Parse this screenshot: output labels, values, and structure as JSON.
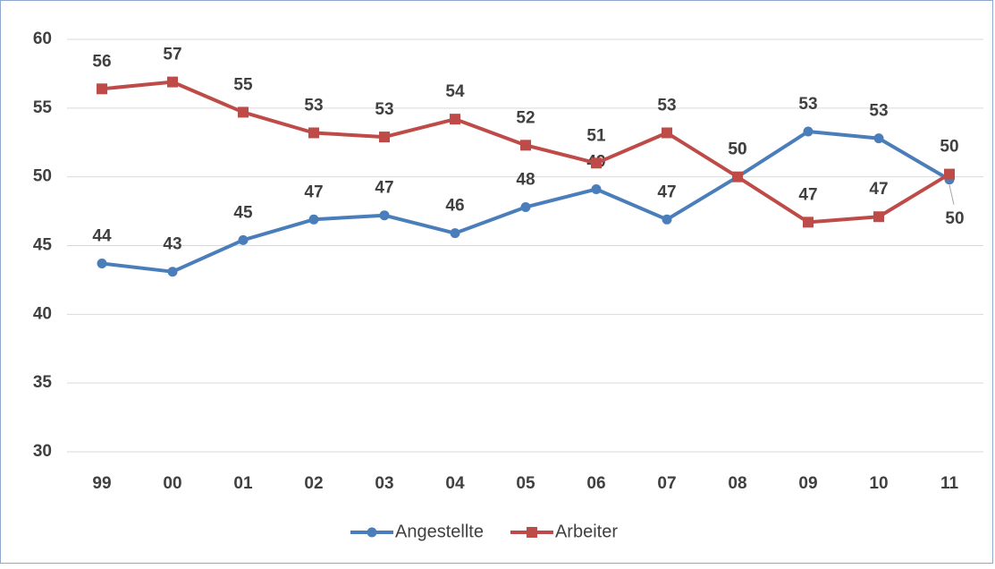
{
  "chart_data": {
    "type": "line",
    "categories": [
      "99",
      "00",
      "01",
      "02",
      "03",
      "04",
      "05",
      "06",
      "07",
      "08",
      "09",
      "10",
      "11"
    ],
    "series": [
      {
        "name": "Angestellte",
        "color": "#4a7ebb",
        "values": [
          43.7,
          43.1,
          45.4,
          46.9,
          47.2,
          45.9,
          47.8,
          49.1,
          46.9,
          50.0,
          53.3,
          52.8,
          49.8
        ],
        "value_labels": [
          "44",
          "43",
          "45",
          "47",
          "47",
          "46",
          "48",
          "49",
          "47",
          "50",
          "53",
          "53",
          "50"
        ]
      },
      {
        "name": "Arbeiter",
        "color": "#be4b48",
        "values": [
          56.4,
          56.9,
          54.7,
          53.2,
          52.9,
          54.2,
          52.3,
          51.0,
          53.2,
          50.0,
          46.7,
          47.1,
          50.2
        ],
        "value_labels": [
          "56",
          "57",
          "55",
          "53",
          "53",
          "54",
          "52",
          "51",
          "53",
          "50",
          "47",
          "47",
          "50"
        ]
      }
    ],
    "ylim": [
      30,
      60
    ],
    "yticks": [
      30,
      35,
      40,
      45,
      50,
      55,
      60
    ],
    "grid": true,
    "legend": "bottom"
  }
}
